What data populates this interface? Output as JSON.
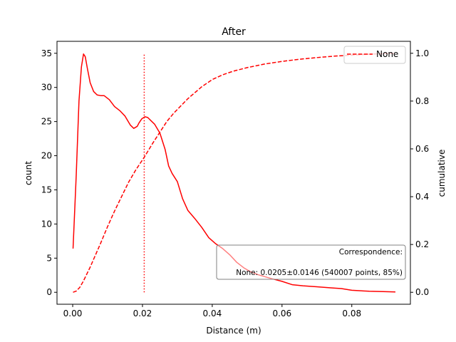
{
  "chart_data": {
    "type": "line",
    "title": "After",
    "xlabel": "Distance (m)",
    "ylabel": "count",
    "y2label": "cumulative",
    "xlim": [
      -0.0045,
      0.0968
    ],
    "ylim": [
      -1.75,
      36.75
    ],
    "y2lim": [
      -0.05,
      1.05
    ],
    "x_ticks": [
      0.0,
      0.02,
      0.04,
      0.06,
      0.08
    ],
    "x_tick_labels": [
      "0.00",
      "0.02",
      "0.04",
      "0.06",
      "0.08"
    ],
    "y_ticks": [
      0,
      5,
      10,
      15,
      20,
      25,
      30,
      35
    ],
    "y_tick_labels": [
      "0",
      "5",
      "10",
      "15",
      "20",
      "25",
      "30",
      "35"
    ],
    "y2_ticks": [
      0.0,
      0.2,
      0.4,
      0.6,
      0.8,
      1.0
    ],
    "y2_tick_labels": [
      "0.0",
      "0.2",
      "0.4",
      "0.6",
      "0.8",
      "1.0"
    ],
    "grid": false,
    "legend": {
      "position": "top-right",
      "entries": [
        {
          "label": "None",
          "style": "dashed",
          "color": "#ff0000"
        }
      ]
    },
    "colors": {
      "series": "#ff0000",
      "annotation_border": "#808080"
    },
    "series": [
      {
        "name": "None",
        "axis": "left",
        "style": "solid",
        "x": [
          0.0001,
          0.001,
          0.0018,
          0.0025,
          0.0031,
          0.0036,
          0.0042,
          0.005,
          0.006,
          0.007,
          0.008,
          0.009,
          0.0105,
          0.012,
          0.0135,
          0.015,
          0.0165,
          0.0175,
          0.0185,
          0.019,
          0.0198,
          0.0207,
          0.0215,
          0.0225,
          0.0235,
          0.025,
          0.0265,
          0.0275,
          0.0285,
          0.03,
          0.0315,
          0.033,
          0.035,
          0.037,
          0.039,
          0.041,
          0.043,
          0.045,
          0.047,
          0.049,
          0.051,
          0.053,
          0.055,
          0.057,
          0.06,
          0.063,
          0.066,
          0.07,
          0.074,
          0.077,
          0.08,
          0.085,
          0.089,
          0.0925
        ],
        "values": [
          6.4,
          17.0,
          28.0,
          33.0,
          34.9,
          34.5,
          32.8,
          30.7,
          29.4,
          28.9,
          28.8,
          28.8,
          28.2,
          27.2,
          26.6,
          25.8,
          24.5,
          24.0,
          24.3,
          24.8,
          25.4,
          25.7,
          25.6,
          25.1,
          24.6,
          23.3,
          20.9,
          18.5,
          17.4,
          16.2,
          13.7,
          12.0,
          10.8,
          9.5,
          8.0,
          7.1,
          6.4,
          5.5,
          4.4,
          3.6,
          3.0,
          2.6,
          2.3,
          2.0,
          1.6,
          1.1,
          0.95,
          0.8,
          0.65,
          0.55,
          0.3,
          0.15,
          0.1,
          0.05
        ]
      },
      {
        "name": "None",
        "axis": "right",
        "style": "dashed",
        "x": [
          0.0001,
          0.001,
          0.002,
          0.003,
          0.004,
          0.005,
          0.0065,
          0.008,
          0.01,
          0.012,
          0.014,
          0.016,
          0.018,
          0.0205,
          0.023,
          0.025,
          0.027,
          0.029,
          0.031,
          0.033,
          0.035,
          0.037,
          0.04,
          0.043,
          0.046,
          0.05,
          0.055,
          0.06,
          0.065,
          0.07,
          0.075,
          0.08,
          0.085,
          0.09,
          0.0925
        ],
        "values": [
          0.0,
          0.005,
          0.02,
          0.045,
          0.075,
          0.105,
          0.155,
          0.205,
          0.275,
          0.34,
          0.4,
          0.46,
          0.51,
          0.565,
          0.625,
          0.67,
          0.715,
          0.75,
          0.78,
          0.81,
          0.835,
          0.86,
          0.89,
          0.91,
          0.925,
          0.94,
          0.955,
          0.966,
          0.975,
          0.982,
          0.988,
          0.992,
          0.996,
          0.999,
          1.0
        ]
      }
    ],
    "vline": {
      "x": 0.0205,
      "y_range": [
        0,
        35
      ],
      "style": "dotted"
    },
    "annotation": {
      "lines": [
        "Correspondence:",
        "None: 0.0205±0.0146 (540007 points, 85%)"
      ],
      "position": "bottom-right"
    }
  }
}
